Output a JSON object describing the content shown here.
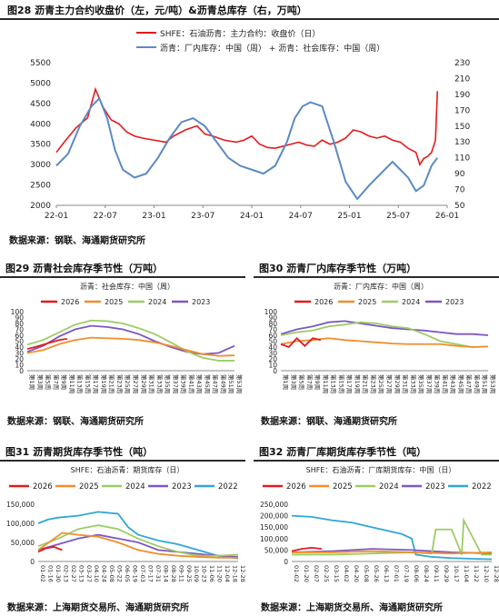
{
  "fig28": {
    "title": "图28  沥青主力合约收盘价（左，元/吨）&沥青总库存（右，万吨）",
    "source": "数据来源：钢联、海通期货研究所",
    "chart_data": {
      "type": "line",
      "legend": [
        "SHFE：石油沥青：主力合约：收盘价（日）",
        "沥青：厂内库存：中国（周） + 沥青：社会库存：中国（周）"
      ],
      "x_ticks": [
        "22-01",
        "22-07",
        "23-01",
        "23-07",
        "24-01",
        "24-07",
        "25-01",
        "25-07",
        "26-01"
      ],
      "ylim_left": [
        2000,
        5500
      ],
      "yticks_left": [
        2000,
        2500,
        3000,
        3500,
        4000,
        4500,
        5000,
        5500
      ],
      "ylim_right": [
        50,
        230
      ],
      "yticks_right": [
        50,
        70,
        90,
        110,
        130,
        150,
        170,
        190,
        210,
        230
      ],
      "series": [
        {
          "name": "SHFE：石油沥青：主力合约：收盘价（日）",
          "color": "#e31a1c",
          "axis": "left",
          "t": [
            0,
            0.02,
            0.05,
            0.08,
            0.1,
            0.12,
            0.14,
            0.16,
            0.18,
            0.2,
            0.22,
            0.25,
            0.28,
            0.3,
            0.33,
            0.36,
            0.38,
            0.4,
            0.43,
            0.46,
            0.48,
            0.5,
            0.52,
            0.54,
            0.56,
            0.58,
            0.6,
            0.62,
            0.64,
            0.66,
            0.68,
            0.7,
            0.72,
            0.74,
            0.76,
            0.78,
            0.8,
            0.82,
            0.84,
            0.86,
            0.88,
            0.9,
            0.92,
            0.93,
            0.94,
            0.95,
            0.96,
            0.97,
            0.975
          ],
          "values": [
            3300,
            3550,
            3900,
            4150,
            4850,
            4400,
            4100,
            4000,
            3800,
            3700,
            3650,
            3600,
            3550,
            3700,
            3850,
            3950,
            3750,
            3700,
            3600,
            3550,
            3600,
            3700,
            3500,
            3420,
            3400,
            3450,
            3500,
            3550,
            3480,
            3450,
            3600,
            3500,
            3550,
            3650,
            3850,
            3800,
            3700,
            3650,
            3700,
            3600,
            3550,
            3400,
            3300,
            3000,
            3150,
            3200,
            3300,
            3600,
            4800
          ]
        },
        {
          "name": "沥青：厂内库存：中国（周） + 沥青：社会库存：中国（周）",
          "color": "#5b8ac4",
          "axis": "right",
          "t": [
            0,
            0.03,
            0.06,
            0.09,
            0.11,
            0.13,
            0.15,
            0.17,
            0.2,
            0.23,
            0.26,
            0.29,
            0.32,
            0.35,
            0.38,
            0.41,
            0.44,
            0.47,
            0.5,
            0.53,
            0.56,
            0.59,
            0.61,
            0.63,
            0.65,
            0.68,
            0.71,
            0.74,
            0.77,
            0.8,
            0.83,
            0.86,
            0.88,
            0.9,
            0.92,
            0.94,
            0.96,
            0.975
          ],
          "values": [
            100,
            115,
            150,
            175,
            185,
            160,
            120,
            95,
            85,
            90,
            110,
            135,
            155,
            160,
            150,
            130,
            110,
            100,
            95,
            90,
            100,
            130,
            160,
            175,
            180,
            175,
            130,
            80,
            58,
            75,
            90,
            105,
            95,
            85,
            68,
            75,
            100,
            110
          ]
        }
      ]
    }
  },
  "fig29": {
    "title": "图29  沥青社会库存季节性（万吨）",
    "subtitle": "沥青：社会库存：中国（周）",
    "source": "数据来源：钢联、海通期货研究所",
    "chart_data": {
      "type": "line",
      "ylim": [
        0,
        100
      ],
      "yticks": [
        0,
        10,
        20,
        30,
        40,
        50,
        60,
        70,
        80,
        90,
        100
      ],
      "x_labels": [
        "第1周",
        "第3周",
        "第5周",
        "第7周",
        "第9周",
        "第11周",
        "第13周",
        "第15周",
        "第17周",
        "第19周",
        "第21周",
        "第23周",
        "第25周",
        "第27周",
        "第29周",
        "第31周",
        "第33周",
        "第35周",
        "第37周",
        "第39周",
        "第41周",
        "第43周",
        "第45周",
        "第47周",
        "第49周",
        "第51周",
        "第53周"
      ],
      "x_range": [
        1,
        53
      ],
      "series": [
        {
          "name": "2026",
          "color": "#e31a1c",
          "weeks": [
            1,
            3,
            5,
            7,
            9,
            11
          ],
          "values": [
            37,
            40,
            44,
            48,
            52,
            54
          ]
        },
        {
          "name": "2025",
          "color": "#f28e2b",
          "weeks": [
            1,
            5,
            9,
            13,
            17,
            21,
            25,
            29,
            33,
            37,
            41,
            45,
            49,
            53
          ],
          "values": [
            30,
            35,
            45,
            52,
            56,
            55,
            54,
            52,
            48,
            42,
            35,
            28,
            25,
            26
          ]
        },
        {
          "name": "2024",
          "color": "#9ccc65",
          "weeks": [
            1,
            5,
            9,
            13,
            17,
            21,
            25,
            29,
            33,
            37,
            41,
            45,
            49,
            53
          ],
          "values": [
            44,
            52,
            65,
            78,
            85,
            84,
            80,
            72,
            62,
            48,
            33,
            22,
            17,
            17
          ]
        },
        {
          "name": "2023",
          "color": "#7e57c2",
          "weeks": [
            1,
            5,
            9,
            13,
            17,
            21,
            25,
            29,
            33,
            37,
            41,
            45,
            49,
            53
          ],
          "values": [
            32,
            42,
            58,
            70,
            76,
            74,
            70,
            62,
            50,
            40,
            32,
            28,
            30,
            42
          ]
        }
      ]
    }
  },
  "fig30": {
    "title": "图30  沥青厂内库存季节性（万吨）",
    "subtitle": "沥青：厂内库存：中国（周）",
    "source": "数据来源：钢联、海通期货研究所",
    "chart_data": {
      "type": "line",
      "ylim": [
        0,
        100
      ],
      "yticks": [
        0,
        10,
        20,
        30,
        40,
        50,
        60,
        70,
        80,
        90,
        100
      ],
      "x_labels": [
        "第1周",
        "第3周",
        "第5周",
        "第7周",
        "第9周",
        "第11周",
        "第13周",
        "第15周",
        "第17周",
        "第19周",
        "第21周",
        "第23周",
        "第25周",
        "第27周",
        "第29周",
        "第31周",
        "第33周",
        "第35周",
        "第37周",
        "第39周",
        "第41周",
        "第43周",
        "第45周",
        "第47周",
        "第49周",
        "第51周",
        "第53周"
      ],
      "x_range": [
        1,
        53
      ],
      "series": [
        {
          "name": "2026",
          "color": "#e31a1c",
          "weeks": [
            1,
            3,
            5,
            7,
            9,
            11
          ],
          "values": [
            45,
            40,
            55,
            42,
            55,
            52
          ]
        },
        {
          "name": "2025",
          "color": "#f28e2b",
          "weeks": [
            1,
            5,
            9,
            13,
            17,
            21,
            25,
            29,
            33,
            37,
            41,
            45,
            49,
            53
          ],
          "values": [
            45,
            50,
            52,
            55,
            52,
            50,
            48,
            46,
            45,
            45,
            45,
            42,
            40,
            41
          ]
        },
        {
          "name": "2024",
          "color": "#9ccc65",
          "weeks": [
            1,
            5,
            9,
            13,
            17,
            21,
            25,
            29,
            33,
            37,
            41,
            45,
            49,
            53
          ],
          "values": [
            60,
            65,
            68,
            75,
            78,
            82,
            80,
            75,
            72,
            62,
            50,
            45,
            40,
            41
          ]
        },
        {
          "name": "2023",
          "color": "#7e57c2",
          "weeks": [
            1,
            5,
            9,
            13,
            17,
            21,
            25,
            29,
            33,
            37,
            41,
            45,
            49,
            53
          ],
          "values": [
            62,
            70,
            75,
            82,
            84,
            80,
            76,
            72,
            70,
            68,
            65,
            62,
            62,
            60
          ]
        }
      ]
    }
  },
  "fig31": {
    "title": "图31  沥青期货库存季节性（吨）",
    "subtitle": "SHFE：石油沥青：期货库存（日）",
    "source": "数据来源：上海期货交易所、海通期货研究所",
    "chart_data": {
      "type": "line",
      "ylim": [
        0,
        150000
      ],
      "yticks": [
        0,
        50000,
        100000,
        150000
      ],
      "x_labels": [
        "01-02",
        "01-16",
        "01-30",
        "02-13",
        "02-27",
        "03-13",
        "03-27",
        "04-10",
        "04-24",
        "05-08",
        "05-22",
        "06-05",
        "06-19",
        "07-03",
        "07-17",
        "07-31",
        "08-14",
        "08-28",
        "09-11",
        "09-25",
        "10-09",
        "10-23",
        "11-06",
        "11-20",
        "12-04",
        "12-18",
        "12-28"
      ],
      "x_range": [
        0,
        1
      ],
      "series": [
        {
          "name": "2026",
          "color": "#e31a1c",
          "t": [
            0.0,
            0.04,
            0.08,
            0.12
          ],
          "values": [
            25000,
            35000,
            38000,
            30000
          ]
        },
        {
          "name": "2025",
          "color": "#f28e2b",
          "t": [
            0.0,
            0.08,
            0.12,
            0.2,
            0.3,
            0.4,
            0.5,
            0.6,
            0.7,
            0.8,
            0.9,
            1.0
          ],
          "values": [
            30000,
            60000,
            75000,
            70000,
            65000,
            50000,
            30000,
            20000,
            15000,
            12000,
            10000,
            10000
          ]
        },
        {
          "name": "2024",
          "color": "#9ccc65",
          "t": [
            0.0,
            0.1,
            0.2,
            0.3,
            0.4,
            0.5,
            0.6,
            0.7,
            0.8,
            0.9,
            1.0
          ],
          "values": [
            40000,
            60000,
            85000,
            95000,
            85000,
            60000,
            40000,
            25000,
            15000,
            15000,
            18000
          ]
        },
        {
          "name": "2023",
          "color": "#7e57c2",
          "t": [
            0.0,
            0.1,
            0.2,
            0.3,
            0.4,
            0.5,
            0.6,
            0.7,
            0.8,
            0.9,
            1.0
          ],
          "values": [
            30000,
            45000,
            60000,
            70000,
            60000,
            50000,
            30000,
            25000,
            20000,
            15000,
            12000
          ]
        },
        {
          "name": "2022",
          "color": "#31a6d6",
          "t": [
            0.0,
            0.05,
            0.1,
            0.2,
            0.3,
            0.4,
            0.45,
            0.5,
            0.6,
            0.7,
            0.8,
            0.9,
            1.0
          ],
          "values": [
            100000,
            110000,
            115000,
            120000,
            130000,
            125000,
            90000,
            70000,
            55000,
            45000,
            30000,
            15000,
            8000
          ]
        }
      ]
    }
  },
  "fig32": {
    "title": "图32  沥青厂库期货库存季节性（吨）",
    "subtitle": "SHFE：石油沥青：厂库期货库存：中国（日）",
    "source": "数据来源：上海期货交易所、海通期货研究所",
    "chart_data": {
      "type": "line",
      "ylim": [
        0,
        250000
      ],
      "yticks": [
        0,
        50000,
        100000,
        150000,
        200000,
        250000
      ],
      "x_labels": [
        "01-02",
        "01-20",
        "02-07",
        "02-25",
        "03-15",
        "04-02",
        "04-20",
        "05-08",
        "05-26",
        "06-13",
        "07-01",
        "07-19",
        "08-06",
        "08-24",
        "09-11",
        "09-29",
        "10-17",
        "11-04",
        "11-22",
        "12-10",
        "12-28"
      ],
      "x_range": [
        0,
        1
      ],
      "series": [
        {
          "name": "2026",
          "color": "#e31a1c",
          "t": [
            0.0,
            0.05,
            0.1,
            0.15
          ],
          "values": [
            45000,
            55000,
            60000,
            55000
          ]
        },
        {
          "name": "2025",
          "color": "#f28e2b",
          "t": [
            0.0,
            0.2,
            0.4,
            0.6,
            0.8,
            1.0
          ],
          "values": [
            40000,
            40000,
            45000,
            40000,
            35000,
            40000
          ]
        },
        {
          "name": "2024",
          "color": "#9ccc65",
          "t": [
            0.0,
            0.2,
            0.4,
            0.6,
            0.7,
            0.72,
            0.8,
            0.85,
            0.86,
            0.95,
            1.0
          ],
          "values": [
            30000,
            30000,
            35000,
            40000,
            35000,
            140000,
            140000,
            30000,
            180000,
            30000,
            30000
          ]
        },
        {
          "name": "2023",
          "color": "#7e57c2",
          "t": [
            0.0,
            0.2,
            0.4,
            0.6,
            0.8,
            1.0
          ],
          "values": [
            40000,
            45000,
            55000,
            50000,
            40000,
            35000
          ]
        },
        {
          "name": "2022",
          "color": "#31a6d6",
          "t": [
            0.0,
            0.1,
            0.2,
            0.3,
            0.4,
            0.5,
            0.55,
            0.6,
            0.62,
            0.7,
            0.8,
            0.9,
            1.0
          ],
          "values": [
            200000,
            195000,
            180000,
            170000,
            150000,
            130000,
            120000,
            100000,
            30000,
            20000,
            15000,
            12000,
            10000
          ]
        }
      ]
    }
  }
}
